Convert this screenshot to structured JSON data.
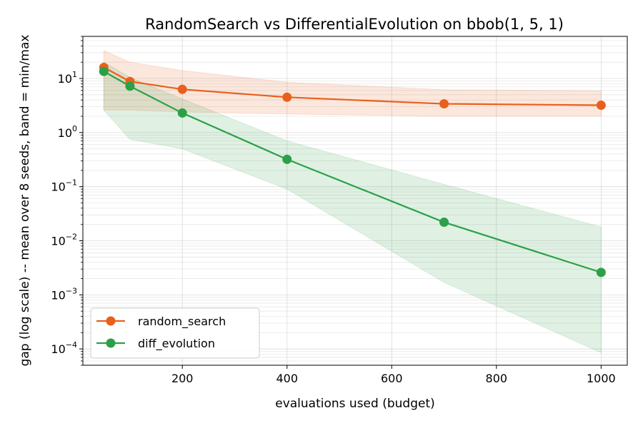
{
  "chart_data": {
    "type": "line",
    "title": "RandomSearch vs DifferentialEvolution on bbob(1, 5, 1)",
    "xlabel": "evaluations used (budget)",
    "ylabel": "gap (log scale) -- mean over 8 seeds, band = min/max",
    "yscale": "log",
    "xlim": [
      10,
      1050
    ],
    "ylim": [
      5e-05,
      60
    ],
    "x_ticks": [
      200,
      400,
      600,
      800,
      1000
    ],
    "y_ticks": [
      {
        "value": 10,
        "base": "10",
        "exp": "1"
      },
      {
        "value": 1,
        "base": "10",
        "exp": "0"
      },
      {
        "value": 0.1,
        "base": "10",
        "exp": "−1"
      },
      {
        "value": 0.01,
        "base": "10",
        "exp": "−2"
      },
      {
        "value": 0.001,
        "base": "10",
        "exp": "−3"
      },
      {
        "value": 0.0001,
        "base": "10",
        "exp": "−4"
      }
    ],
    "grid": true,
    "legend_position": "lower-left",
    "series": [
      {
        "name": "random_search",
        "color": "#e8601c",
        "x": [
          50,
          100,
          200,
          400,
          700,
          1000
        ],
        "mean": [
          16,
          8.8,
          6.3,
          4.5,
          3.4,
          3.2
        ],
        "band_min": [
          2.6,
          2.6,
          2.4,
          2.2,
          2.0,
          2.0
        ],
        "band_max": [
          33,
          20,
          14,
          8.5,
          6.2,
          5.9
        ]
      },
      {
        "name": "diff_evolution",
        "color": "#2ca048",
        "x": [
          50,
          100,
          200,
          400,
          700,
          1000
        ],
        "mean": [
          13.5,
          7.2,
          2.3,
          0.32,
          0.022,
          0.0026
        ],
        "band_min": [
          2.6,
          0.75,
          0.5,
          0.09,
          0.0017,
          8.5e-05
        ],
        "band_max": [
          20,
          10.5,
          4.2,
          0.7,
          0.11,
          0.018
        ]
      }
    ]
  }
}
